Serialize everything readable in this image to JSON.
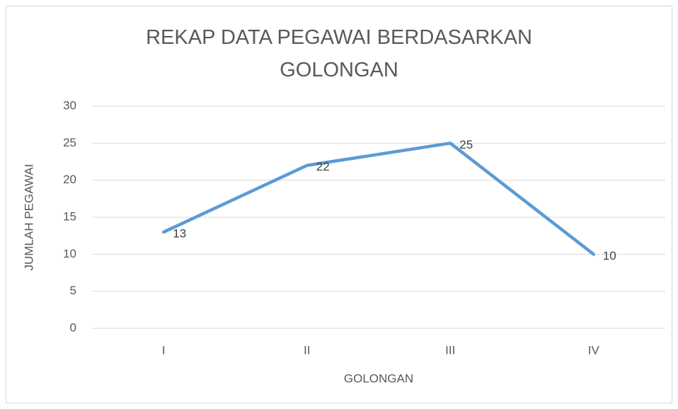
{
  "chart_data": {
    "type": "line",
    "title": "REKAP DATA PEGAWAI BERDASARKAN GOLONGAN",
    "x_label": "GOLONGAN",
    "y_label": "JUMLAH PEGAWAI",
    "categories": [
      "I",
      "II",
      "III",
      "IV"
    ],
    "series": [
      {
        "name": "JUMLAH PEGAWAI",
        "color": "#5b9bd5",
        "values": [
          13,
          22,
          25,
          10
        ]
      }
    ],
    "ylim": [
      0,
      30
    ],
    "yticks": [
      0,
      5,
      10,
      15,
      20,
      25,
      30
    ],
    "grid": true,
    "data_labels": true
  }
}
